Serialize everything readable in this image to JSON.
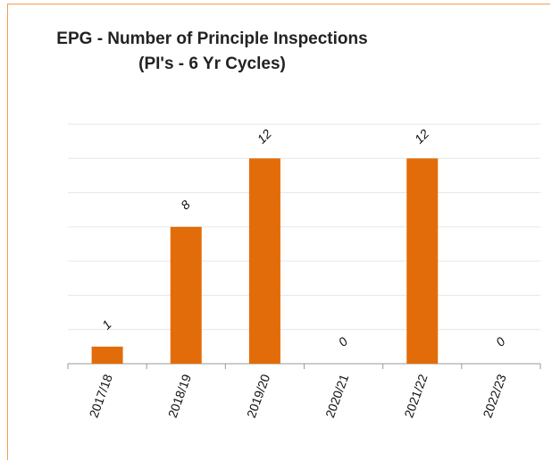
{
  "chart_data": {
    "type": "bar",
    "title": "EPG - Number of Principle Inspections (PI's - 6 Yr Cycles)",
    "categories": [
      "2017/18",
      "2018/19",
      "2019/20",
      "2020/21",
      "2021/22",
      "2022/23"
    ],
    "values": [
      1,
      8,
      12,
      0,
      12,
      0
    ],
    "color": "#e36c0a",
    "ylim": [
      0,
      14
    ],
    "yticks": [
      0,
      2,
      4,
      6,
      8,
      10,
      12,
      14
    ],
    "grid": true
  }
}
